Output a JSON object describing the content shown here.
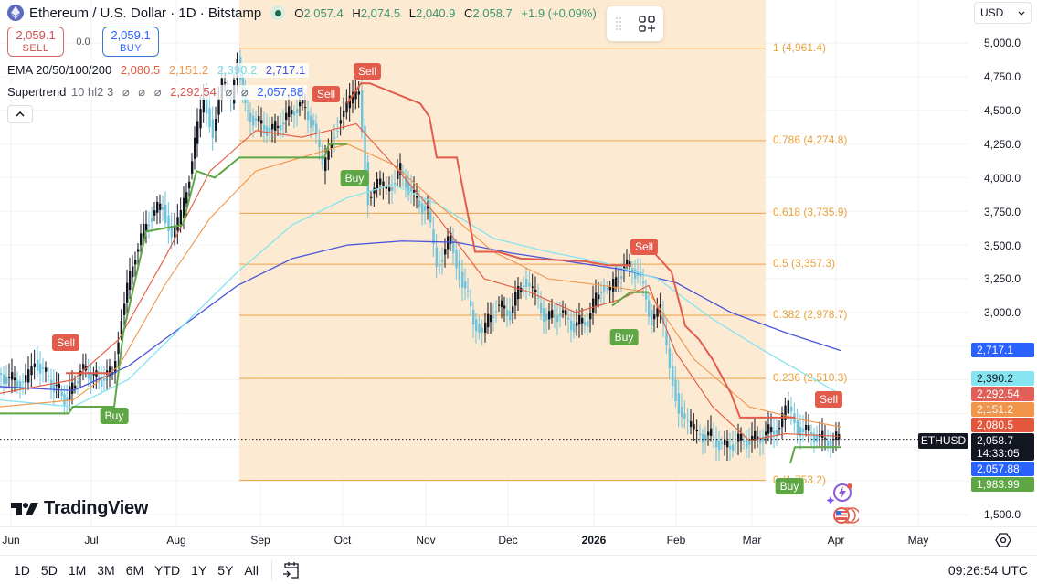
{
  "header": {
    "symbol_title": "Ethereum / U.S. Dollar · 1D · Bitstamp",
    "ohlc": {
      "open_key": "O",
      "open": "2,057.4",
      "high_key": "H",
      "high": "2,074.5",
      "low_key": "L",
      "low": "2,040.9",
      "close_key": "C",
      "close": "2,058.7",
      "change": "+1.9 (+0.09%)"
    }
  },
  "trade": {
    "sell_price": "2,059.1",
    "sell_label": "SELL",
    "spread": "0.0",
    "buy_price": "2,059.1",
    "buy_label": "BUY"
  },
  "indicators": {
    "ema": {
      "name": "EMA 20/50/100/200",
      "values": [
        "2,080.5",
        "2,151.2",
        "2,390.2",
        "2,717.1"
      ],
      "colors": [
        "#e4573d",
        "#f0954a",
        "#7ddbe8",
        "#4a55d8"
      ]
    },
    "supertrend": {
      "name": "Supertrend",
      "params": "10 hl2 3",
      "na": "⌀",
      "up_value": "2,292.54",
      "down_value": "2,057.88"
    }
  },
  "currency_select": {
    "value": "USD"
  },
  "price_axis": {
    "labels": [
      "5,000.0",
      "4,750.0",
      "4,500.0",
      "4,250.0",
      "4,000.0",
      "3,750.0",
      "3,500.0",
      "3,250.0",
      "3,000.0",
      "1,500.0"
    ],
    "tags": {
      "ema200": "2,717.1",
      "ema100": "2,390.2",
      "st_up": "2,292.54",
      "ema50": "2,151.2",
      "ema20": "2,080.5",
      "last": "2,058.7",
      "countdown": "14:33:05",
      "st_down": "2,057.88",
      "buy_level": "1,983.99"
    },
    "symbol_tag": "ETHUSD"
  },
  "time_axis": {
    "labels": [
      "Jun",
      "Jul",
      "Aug",
      "Sep",
      "Oct",
      "Nov",
      "Dec",
      "2026",
      "Feb",
      "Mar",
      "Apr",
      "May"
    ]
  },
  "bottom_bar": {
    "ranges": [
      "1D",
      "5D",
      "1M",
      "3M",
      "6M",
      "YTD",
      "1Y",
      "5Y",
      "All"
    ],
    "clock": "09:26:54 UTC"
  },
  "branding": {
    "logo_text": "TradingView"
  },
  "fib_levels": [
    {
      "label": "1 (4,961.4)"
    },
    {
      "label": "0.786 (4,274.8)"
    },
    {
      "label": "0.618 (3,735.9)"
    },
    {
      "label": "0.5 (3,357.3)"
    },
    {
      "label": "0.382 (2,978.7)"
    },
    {
      "label": "0.236 (2,510.3)"
    },
    {
      "label": "0 (1,753.2)"
    }
  ],
  "signals": [
    {
      "type": "sell",
      "label": "Sell"
    },
    {
      "type": "buy",
      "label": "Buy"
    },
    {
      "type": "sell",
      "label": "Sell"
    },
    {
      "type": "sell",
      "label": "Sell"
    },
    {
      "type": "buy",
      "label": "Buy"
    },
    {
      "type": "sell",
      "label": "Sell"
    },
    {
      "type": "buy",
      "label": "Buy"
    },
    {
      "type": "sell",
      "label": "Sell"
    },
    {
      "type": "buy",
      "label": "Buy"
    }
  ],
  "chart_data": {
    "type": "candlestick",
    "title": "Ethereum / U.S. Dollar · 1D · Bitstamp",
    "xlabel": "",
    "ylabel": "USD",
    "ylim": [
      1500,
      5000
    ],
    "x_ticks": [
      "Jun",
      "Jul",
      "Aug",
      "Sep",
      "Oct",
      "Nov",
      "Dec",
      "2026",
      "Feb",
      "Mar",
      "Apr",
      "May"
    ],
    "y_ticks": [
      1500,
      3000,
      3250,
      3500,
      3750,
      4000,
      4250,
      4500,
      4750,
      5000
    ],
    "grid": true,
    "last": {
      "open": 2057.4,
      "high": 2074.5,
      "low": 2040.9,
      "close": 2058.7,
      "change": 1.9
    },
    "approx_monthly_close": {
      "x": [
        "Jun",
        "Jul",
        "Aug",
        "Sep",
        "Oct",
        "Nov",
        "Dec",
        "Jan",
        "Feb",
        "Mar",
        "Apr"
      ],
      "values": [
        2500,
        2450,
        3800,
        4400,
        4250,
        3900,
        2950,
        3000,
        2450,
        1950,
        2058.7
      ]
    },
    "series": [
      {
        "name": "EMA 20",
        "last": 2080.5,
        "color": "#e4573d"
      },
      {
        "name": "EMA 50",
        "last": 2151.2,
        "color": "#f0954a"
      },
      {
        "name": "EMA 100",
        "last": 2390.2,
        "color": "#7ddbe8"
      },
      {
        "name": "EMA 200",
        "last": 2717.1,
        "color": "#4a55d8"
      },
      {
        "name": "Supertrend up",
        "last": 2292.54,
        "color": "#e25c4b"
      },
      {
        "name": "Supertrend down",
        "last": 2057.88,
        "color": "#5fa645"
      }
    ],
    "fibonacci": [
      {
        "ratio": 1,
        "price": 4961.4
      },
      {
        "ratio": 0.786,
        "price": 4274.8
      },
      {
        "ratio": 0.618,
        "price": 3735.9
      },
      {
        "ratio": 0.5,
        "price": 3357.3
      },
      {
        "ratio": 0.382,
        "price": 2978.7
      },
      {
        "ratio": 0.236,
        "price": 2510.3
      },
      {
        "ratio": 0,
        "price": 1753.2
      }
    ],
    "legend_position": "top-left"
  }
}
